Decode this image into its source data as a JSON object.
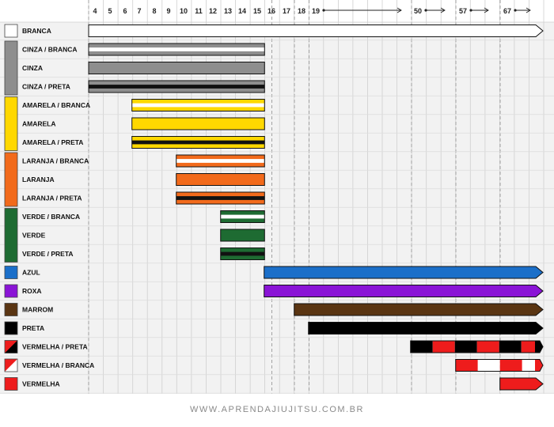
{
  "chart_data": {
    "type": "bar",
    "subtype": "floating-range-timeline",
    "x_unit": "age (years)",
    "age_ticks": [
      {
        "label": "4",
        "age": 4
      },
      {
        "label": "5",
        "age": 5
      },
      {
        "label": "6",
        "age": 6
      },
      {
        "label": "7",
        "age": 7
      },
      {
        "label": "8",
        "age": 8
      },
      {
        "label": "9",
        "age": 9
      },
      {
        "label": "10",
        "age": 10
      },
      {
        "label": "11",
        "age": 11
      },
      {
        "label": "12",
        "age": 12
      },
      {
        "label": "13",
        "age": 13
      },
      {
        "label": "14",
        "age": 14
      },
      {
        "label": "15",
        "age": 15
      },
      {
        "label": "16",
        "age": 16
      },
      {
        "label": "17",
        "age": 17
      },
      {
        "label": "18",
        "age": 18
      },
      {
        "label": "19",
        "age": 19,
        "arrow": true
      },
      {
        "label": "50",
        "age": 50,
        "arrow": true
      },
      {
        "label": "57",
        "age": 57,
        "arrow": true
      },
      {
        "label": "67",
        "age": 67,
        "arrow": true
      }
    ],
    "belts": [
      {
        "label": "BRANCA",
        "start_age": 4,
        "end_age": null,
        "swatch": [
          "#ffffff"
        ],
        "pattern": "solid",
        "colors": [
          "#ffffff"
        ]
      },
      {
        "label": "CINZA / BRANCA",
        "start_age": 4,
        "end_age": 15,
        "swatch": [
          "#8e8e8e"
        ],
        "pattern": "stripe",
        "colors": [
          "#8e8e8e",
          "#ffffff"
        ]
      },
      {
        "label": "CINZA",
        "start_age": 4,
        "end_age": 15,
        "swatch": [
          "#8e8e8e"
        ],
        "pattern": "solid",
        "colors": [
          "#8e8e8e"
        ]
      },
      {
        "label": "CINZA / PRETA",
        "start_age": 4,
        "end_age": 15,
        "swatch": [
          "#8e8e8e"
        ],
        "pattern": "stripe",
        "colors": [
          "#8e8e8e",
          "#111111"
        ]
      },
      {
        "label": "AMARELA / BRANCA",
        "start_age": 7,
        "end_age": 15,
        "swatch": [
          "#ffd800"
        ],
        "pattern": "stripe",
        "colors": [
          "#ffd800",
          "#ffffff"
        ]
      },
      {
        "label": "AMARELA",
        "start_age": 7,
        "end_age": 15,
        "swatch": [
          "#ffd800"
        ],
        "pattern": "solid",
        "colors": [
          "#ffd800"
        ]
      },
      {
        "label": "AMARELA / PRETA",
        "start_age": 7,
        "end_age": 15,
        "swatch": [
          "#ffd800"
        ],
        "pattern": "stripe",
        "colors": [
          "#ffd800",
          "#111111"
        ]
      },
      {
        "label": "LARANJA / BRANCA",
        "start_age": 10,
        "end_age": 15,
        "swatch": [
          "#f26a1b"
        ],
        "pattern": "stripe",
        "colors": [
          "#f26a1b",
          "#ffffff"
        ]
      },
      {
        "label": "LARANJA",
        "start_age": 10,
        "end_age": 15,
        "swatch": [
          "#f26a1b"
        ],
        "pattern": "solid",
        "colors": [
          "#f26a1b"
        ]
      },
      {
        "label": "LARANJA / PRETA",
        "start_age": 10,
        "end_age": 15,
        "swatch": [
          "#f26a1b"
        ],
        "pattern": "stripe",
        "colors": [
          "#f26a1b",
          "#111111"
        ]
      },
      {
        "label": "VERDE / BRANCA",
        "start_age": 13,
        "end_age": 15,
        "swatch": [
          "#1e6b32"
        ],
        "pattern": "stripe",
        "colors": [
          "#1e6b32",
          "#ffffff"
        ]
      },
      {
        "label": "VERDE",
        "start_age": 13,
        "end_age": 15,
        "swatch": [
          "#1e6b32"
        ],
        "pattern": "solid",
        "colors": [
          "#1e6b32"
        ]
      },
      {
        "label": "VERDE / PRETA",
        "start_age": 13,
        "end_age": 15,
        "swatch": [
          "#1e6b32"
        ],
        "pattern": "stripe",
        "colors": [
          "#1e6b32",
          "#111111"
        ]
      },
      {
        "label": "AZUL",
        "start_age": 16,
        "end_age": null,
        "swatch": [
          "#1b6fc9"
        ],
        "pattern": "solid",
        "colors": [
          "#1b6fc9"
        ]
      },
      {
        "label": "ROXA",
        "start_age": 16,
        "end_age": null,
        "swatch": [
          "#8a14d6"
        ],
        "pattern": "solid",
        "colors": [
          "#8a14d6"
        ]
      },
      {
        "label": "MARROM",
        "start_age": 18,
        "end_age": null,
        "swatch": [
          "#5a3512"
        ],
        "pattern": "solid",
        "colors": [
          "#5a3512"
        ]
      },
      {
        "label": "PRETA",
        "start_age": 19,
        "end_age": null,
        "swatch": [
          "#000000"
        ],
        "pattern": "solid",
        "colors": [
          "#000000"
        ]
      },
      {
        "label": "VERMELHA / PRETA",
        "start_age": 50,
        "end_age": null,
        "swatch": [
          "#ee1c1c",
          "#000000"
        ],
        "pattern": "blocks",
        "colors": [
          "#000000",
          "#ee1c1c"
        ]
      },
      {
        "label": "VERMELHA / BRANCA",
        "start_age": 57,
        "end_age": null,
        "swatch": [
          "#ee1c1c",
          "#ffffff"
        ],
        "pattern": "blocks",
        "colors": [
          "#ee1c1c",
          "#ffffff"
        ]
      },
      {
        "label": "VERMELHA",
        "start_age": 67,
        "end_age": null,
        "swatch": [
          "#ee1c1c"
        ],
        "pattern": "solid",
        "colors": [
          "#ee1c1c"
        ]
      }
    ],
    "grid": true,
    "legend": "none"
  },
  "footer": "WWW.APRENDAJIUJITSU.COM.BR"
}
